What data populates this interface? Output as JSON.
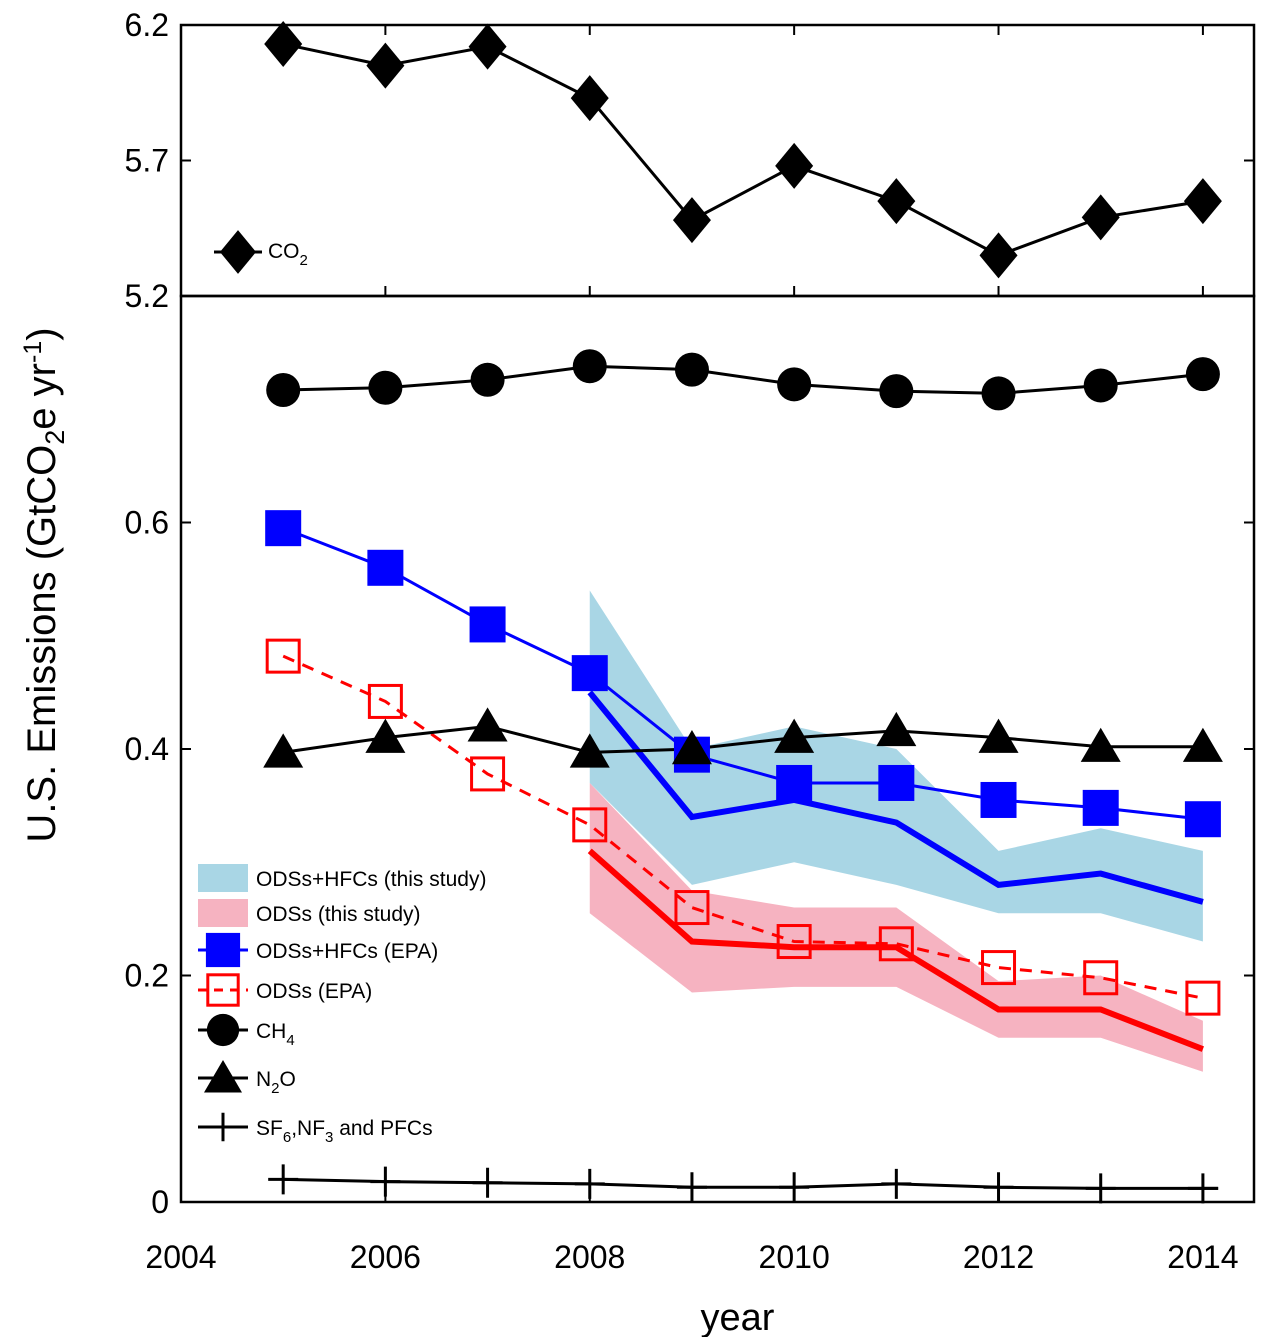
{
  "chart_data": [
    {
      "type": "line",
      "panel": "top",
      "x": [
        2005,
        2006,
        2007,
        2008,
        2009,
        2010,
        2011,
        2012,
        2013,
        2014
      ],
      "ylim": [
        5.2,
        6.2
      ],
      "yticks": [
        "6.2",
        "5.7",
        "5.2"
      ],
      "series": [
        {
          "name": "CO",
          "name_sub": "2",
          "marker": "diamond",
          "color": "#000000",
          "values": [
            6.13,
            6.05,
            6.12,
            5.93,
            5.48,
            5.68,
            5.55,
            5.35,
            5.49,
            5.55
          ]
        }
      ],
      "legend_position": "lower-left"
    },
    {
      "type": "line",
      "panel": "bottom",
      "x": [
        2005,
        2006,
        2007,
        2008,
        2009,
        2010,
        2011,
        2012,
        2013,
        2014
      ],
      "xlim": [
        2004,
        2014.5
      ],
      "xticks": [
        "2004",
        "2006",
        "2008",
        "2010",
        "2012",
        "2014"
      ],
      "xlabel": "year",
      "ylim": [
        0,
        0.8
      ],
      "yticks": [
        "0",
        "0.2",
        "0.4",
        "0.6"
      ],
      "ylabel": "U.S. Emissions (GtCO",
      "ylabel_sub": "2",
      "ylabel_mid": "e yr",
      "ylabel_sup": "-1",
      "ylabel_end": ")",
      "bands": [
        {
          "name": "ODSs+HFCs (this study)",
          "color": "#a9d6e5",
          "x": [
            2008,
            2009,
            2010,
            2011,
            2012,
            2013,
            2014
          ],
          "low": [
            0.37,
            0.28,
            0.3,
            0.28,
            0.255,
            0.255,
            0.23
          ],
          "high": [
            0.54,
            0.4,
            0.42,
            0.4,
            0.31,
            0.33,
            0.31
          ],
          "mean": [
            0.45,
            0.34,
            0.355,
            0.335,
            0.28,
            0.29,
            0.265
          ],
          "line_color": "#0000ff"
        },
        {
          "name": "ODSs (this study)",
          "color": "#f6b3c1",
          "x": [
            2008,
            2009,
            2010,
            2011,
            2012,
            2013,
            2014
          ],
          "low": [
            0.255,
            0.185,
            0.19,
            0.19,
            0.145,
            0.145,
            0.115
          ],
          "high": [
            0.37,
            0.275,
            0.26,
            0.26,
            0.195,
            0.2,
            0.16
          ],
          "mean": [
            0.31,
            0.23,
            0.225,
            0.225,
            0.17,
            0.17,
            0.135
          ],
          "line_color": "#ff0000"
        }
      ],
      "series": [
        {
          "name": "ODSs+HFCs (EPA)",
          "marker": "square-filled",
          "color": "#0000ff",
          "values": [
            0.595,
            0.56,
            0.51,
            0.467,
            0.395,
            0.37,
            0.37,
            0.355,
            0.348,
            0.338
          ]
        },
        {
          "name": "ODSs (EPA)",
          "marker": "square-open",
          "color": "#ff0000",
          "dashed": true,
          "values": [
            0.482,
            0.442,
            0.378,
            0.333,
            0.26,
            0.23,
            0.228,
            0.207,
            0.198,
            0.18
          ]
        },
        {
          "name": "CH",
          "name_sub": "4",
          "marker": "circle",
          "color": "#000000",
          "values": [
            0.717,
            0.719,
            0.726,
            0.738,
            0.735,
            0.722,
            0.716,
            0.714,
            0.721,
            0.731
          ]
        },
        {
          "name": "N",
          "name_sub": "2",
          "name_end": "O",
          "marker": "triangle",
          "color": "#000000",
          "values": [
            0.397,
            0.41,
            0.42,
            0.397,
            0.4,
            0.41,
            0.416,
            0.41,
            0.402,
            0.402
          ]
        },
        {
          "name": "SF",
          "name_sub": "6",
          "name_mid": ",NF",
          "name_sub2": "3",
          "name_end": " and PFCs",
          "marker": "plus",
          "color": "#000000",
          "values": [
            0.02,
            0.018,
            0.017,
            0.016,
            0.013,
            0.013,
            0.016,
            0.013,
            0.012,
            0.012
          ]
        }
      ],
      "legend_position": "lower-left"
    }
  ]
}
